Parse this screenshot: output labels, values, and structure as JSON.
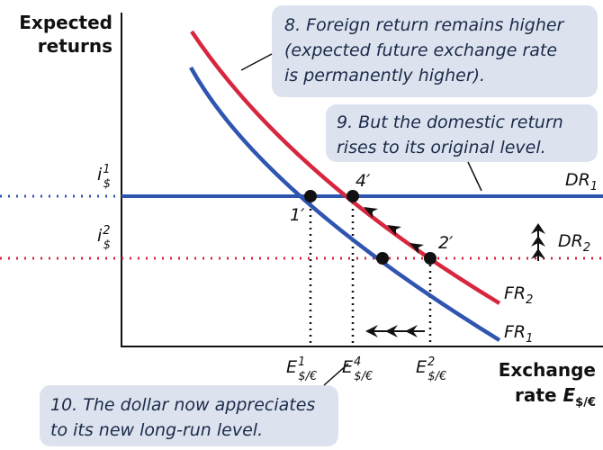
{
  "y_axis": {
    "lines": [
      "Expected",
      "returns"
    ]
  },
  "x_axis": {
    "line1": "Exchange",
    "line2": "rate ",
    "var": "E",
    "sub": "$/€"
  },
  "rates": [
    {
      "base": "i",
      "sup": "1",
      "sub": "$"
    },
    {
      "base": "i",
      "sup": "2",
      "sub": "$"
    }
  ],
  "curves": [
    {
      "base": "DR",
      "sub": "1"
    },
    {
      "base": "DR",
      "sub": "2"
    },
    {
      "base": "FR",
      "sub": "2"
    },
    {
      "base": "FR",
      "sub": "1"
    }
  ],
  "points": [
    "1′",
    "4′",
    "2′"
  ],
  "x_labels": [
    {
      "base": "E",
      "sup": "1",
      "sub": "$/€"
    },
    {
      "base": "E",
      "sup": "4",
      "sub": "$/€"
    },
    {
      "base": "E",
      "sup": "2",
      "sub": "$/€"
    }
  ],
  "annotations": [
    [
      "8. Foreign return remains higher",
      "(expected future exchange rate",
      "is permanently higher)."
    ],
    [
      "9. But the domestic return",
      "rises to its original level."
    ],
    [
      "10. The dollar now appreciates",
      "to its new long-run level."
    ]
  ]
}
